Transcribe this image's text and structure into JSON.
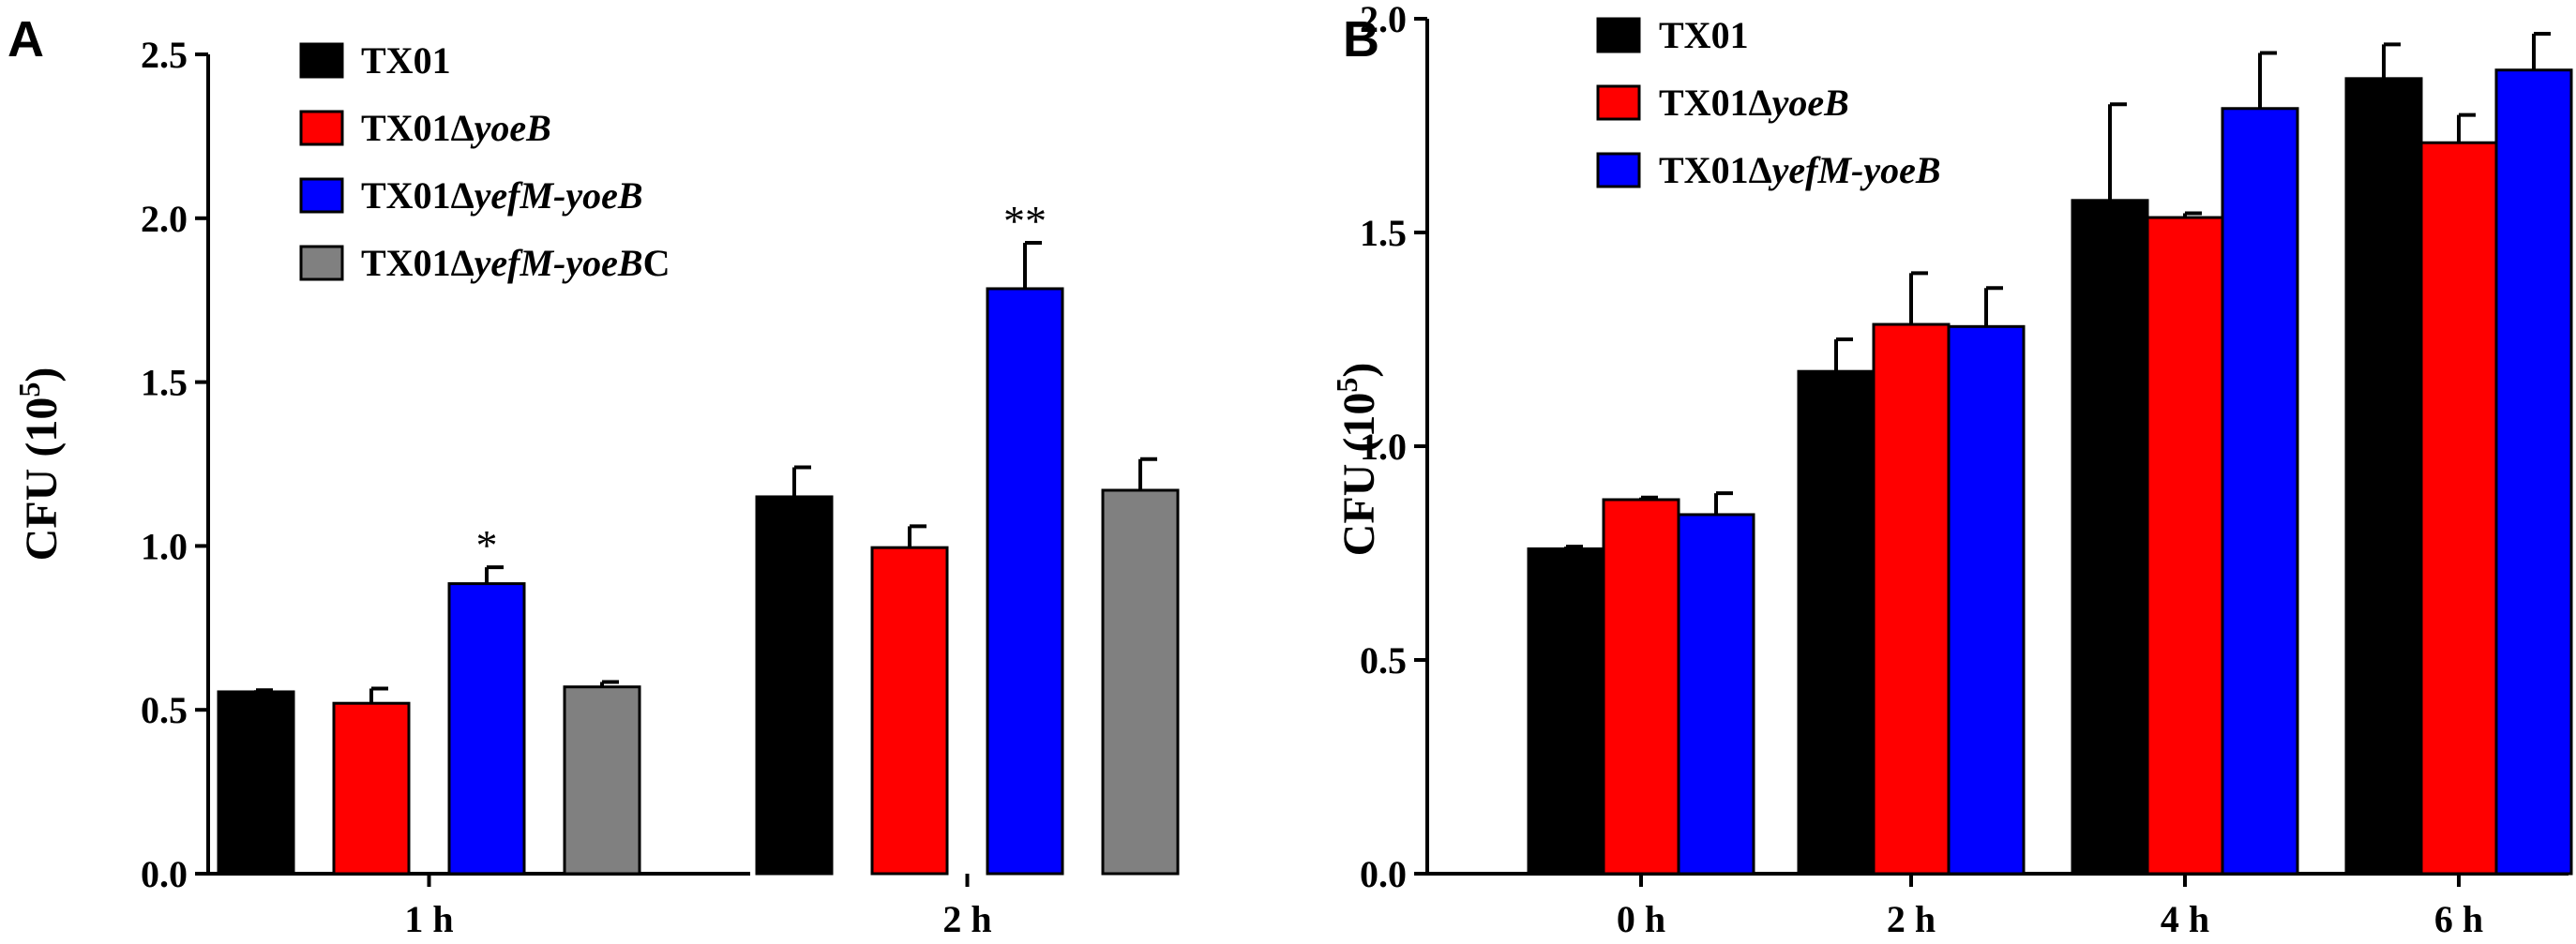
{
  "figure": {
    "panels": [
      {
        "letter": "A",
        "ylabel": "CFU (10",
        "ylabel_exp": "5",
        "ylabel_close": ")"
      },
      {
        "letter": "B",
        "ylabel": "CFU (10",
        "ylabel_exp": "5",
        "ylabel_close": ")"
      }
    ]
  },
  "chart_data": [
    {
      "type": "bar",
      "panel": "A",
      "title": "",
      "xlabel": "",
      "ylabel": "CFU (10^5)",
      "ylim": [
        0,
        2.5
      ],
      "yticks": [
        "0.0",
        "0.5",
        "1.0",
        "1.5",
        "2.0",
        "2.5"
      ],
      "ytick_values": [
        0,
        0.5,
        1.0,
        1.5,
        2.0,
        2.5
      ],
      "categories": [
        "1 h",
        "2 h"
      ],
      "legend_position": "top-left",
      "series": [
        {
          "name": "TX01",
          "name_prefix": "TX01",
          "name_italic": "",
          "name_suffix": "",
          "color": "#000000",
          "values": [
            0.555,
            1.15
          ],
          "errors": [
            0.005,
            0.09
          ],
          "labels": [
            "",
            ""
          ]
        },
        {
          "name": "TX01ΔyoeB",
          "name_prefix": "TX01Δ",
          "name_italic": "yoeB",
          "name_suffix": "",
          "color": "#ff0000",
          "values": [
            0.52,
            0.995
          ],
          "errors": [
            0.045,
            0.065
          ],
          "labels": [
            "",
            ""
          ]
        },
        {
          "name": "TX01ΔyefM-yoeB",
          "name_prefix": "TX01Δ",
          "name_italic": "yefM-yoeB",
          "name_suffix": "",
          "color": "#0000ff",
          "values": [
            0.885,
            1.785
          ],
          "errors": [
            0.05,
            0.14
          ],
          "labels": [
            "*",
            "**"
          ]
        },
        {
          "name": "TX01ΔyefM-yoeBC",
          "name_prefix": "TX01Δ",
          "name_italic": "yefM-yoeB",
          "name_suffix": "C",
          "color": "#808080",
          "values": [
            0.57,
            1.17
          ],
          "errors": [
            0.015,
            0.095
          ],
          "labels": [
            "",
            ""
          ]
        }
      ]
    },
    {
      "type": "bar",
      "panel": "B",
      "title": "",
      "xlabel": "",
      "ylabel": "CFU (10^5)",
      "ylim": [
        0,
        2.0
      ],
      "yticks": [
        "0.0",
        "0.5",
        "1.0",
        "1.5",
        "2.0"
      ],
      "ytick_values": [
        0,
        0.5,
        1.0,
        1.5,
        2.0
      ],
      "categories": [
        "0 h",
        "2 h",
        "4 h",
        "6 h"
      ],
      "legend_position": "top-left",
      "series": [
        {
          "name": "TX01",
          "name_prefix": "TX01",
          "name_italic": "",
          "name_suffix": "",
          "color": "#000000",
          "values": [
            0.76,
            1.175,
            1.575,
            1.86
          ],
          "errors": [
            0.005,
            0.075,
            0.225,
            0.08
          ],
          "labels": [
            "",
            "",
            "",
            ""
          ]
        },
        {
          "name": "TX01ΔyoeB",
          "name_prefix": "TX01Δ",
          "name_italic": "yoeB",
          "name_suffix": "",
          "color": "#ff0000",
          "values": [
            0.875,
            1.285,
            1.535,
            1.71
          ],
          "errors": [
            0.005,
            0.12,
            0.01,
            0.065
          ],
          "labels": [
            "",
            "",
            "",
            ""
          ]
        },
        {
          "name": "TX01ΔyefM-yoeB",
          "name_prefix": "TX01Δ",
          "name_italic": "yefM-yoeB",
          "name_suffix": "",
          "color": "#0000ff",
          "values": [
            0.84,
            1.28,
            1.79,
            1.88
          ],
          "errors": [
            0.05,
            0.09,
            0.13,
            0.085
          ],
          "labels": [
            "",
            "",
            "",
            ""
          ]
        }
      ]
    }
  ]
}
